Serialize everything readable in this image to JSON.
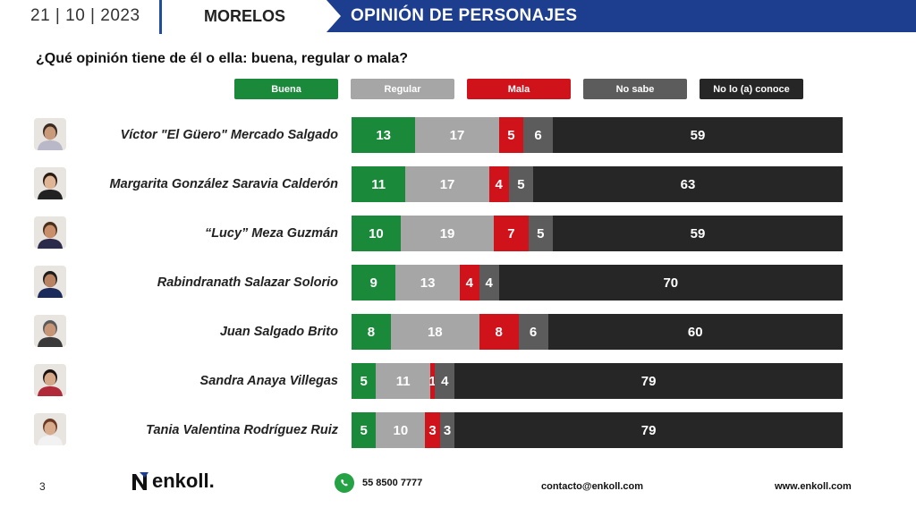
{
  "header": {
    "date": "21 | 10 | 2023",
    "region": "MORELOS",
    "title": "OPINIÓN DE PERSONAJES"
  },
  "question": "¿Qué opinión tiene de él o ella: buena, regular o mala?",
  "colors": {
    "buena": "#1a8a3a",
    "regular": "#a6a6a6",
    "mala": "#d0121b",
    "no_sabe": "#5c5c5c",
    "no_conoce": "#262626",
    "banner": "#1d3d8f"
  },
  "chart_data": {
    "type": "bar",
    "orientation": "horizontal",
    "stacked": true,
    "title": "¿Qué opinión tiene de él o ella: buena, regular o mala?",
    "legend": [
      "Buena",
      "Regular",
      "Mala",
      "No sabe",
      "No lo (a) conoce"
    ],
    "categories": [
      "Víctor \"El Güero\" Mercado Salgado",
      "Margarita González Saravia Calderón",
      "“Lucy” Meza Guzmán",
      "Rabindranath Salazar Solorio",
      "Juan Salgado Brito",
      "Sandra Anaya Villegas",
      "Tania Valentina Rodríguez Ruiz"
    ],
    "series": [
      {
        "name": "Buena",
        "values": [
          13,
          11,
          10,
          9,
          8,
          5,
          5
        ]
      },
      {
        "name": "Regular",
        "values": [
          17,
          17,
          19,
          13,
          18,
          11,
          10
        ]
      },
      {
        "name": "Mala",
        "values": [
          5,
          4,
          7,
          4,
          8,
          1,
          3
        ]
      },
      {
        "name": "No sabe",
        "values": [
          6,
          5,
          5,
          4,
          6,
          4,
          3
        ]
      },
      {
        "name": "No lo (a) conoce",
        "values": [
          59,
          63,
          59,
          70,
          60,
          79,
          79
        ]
      }
    ]
  },
  "footer": {
    "page": "3",
    "logo": "enkoll.",
    "phone": "55 8500 7777",
    "email": "contacto@enkoll.com",
    "web": "www.enkoll.com"
  }
}
